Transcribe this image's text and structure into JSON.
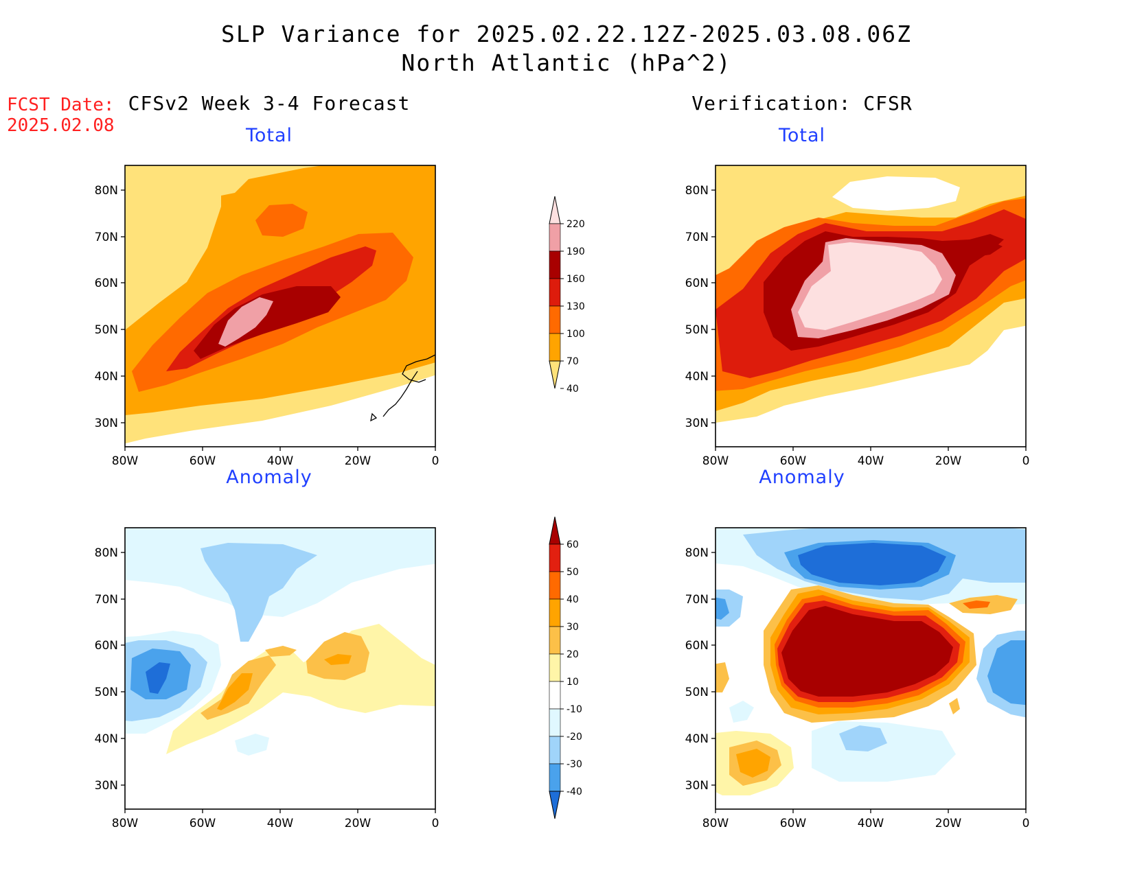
{
  "header": {
    "title_line1": "SLP Variance for 2025.02.22.12Z-2025.03.08.06Z",
    "title_line2": "North Atlantic (hPa^2)"
  },
  "fcst_date": {
    "label": "FCST Date:",
    "value": "2025.02.08"
  },
  "columns": {
    "left_title": "CFSv2 Week 3-4 Forecast",
    "right_title": "Verification: CFSR"
  },
  "panels": {
    "forecast_total": {
      "subtitle": "Total"
    },
    "verification_total": {
      "subtitle": "Total"
    },
    "forecast_anomaly": {
      "subtitle": "Anomaly"
    },
    "verification_anomaly": {
      "subtitle": "Anomaly"
    }
  },
  "axes": {
    "lat_labels": [
      "80N",
      "70N",
      "60N",
      "50N",
      "40N",
      "30N"
    ],
    "lon_labels": [
      "80W",
      "60W",
      "40W",
      "20W",
      "0"
    ]
  },
  "total_colorbar": {
    "levels": [
      "220",
      "190",
      "160",
      "130",
      "100",
      "70",
      "40"
    ],
    "colors": [
      "#fde0e0",
      "#f0a0a6",
      "#a80000",
      "#dd1c0c",
      "#ff6a00",
      "#ffa400",
      "#ffe27a"
    ]
  },
  "anomaly_colorbar": {
    "levels": [
      "60",
      "50",
      "40",
      "30",
      "20",
      "10",
      "-10",
      "-20",
      "-30",
      "-40"
    ],
    "colors": [
      "#a80000",
      "#e22010",
      "#ff6a00",
      "#ffa400",
      "#fcc048",
      "#fff5a8",
      "#ffffff",
      "#e0f8ff",
      "#a0d4fa",
      "#4aa2ec",
      "#1e6ed8"
    ]
  }
}
